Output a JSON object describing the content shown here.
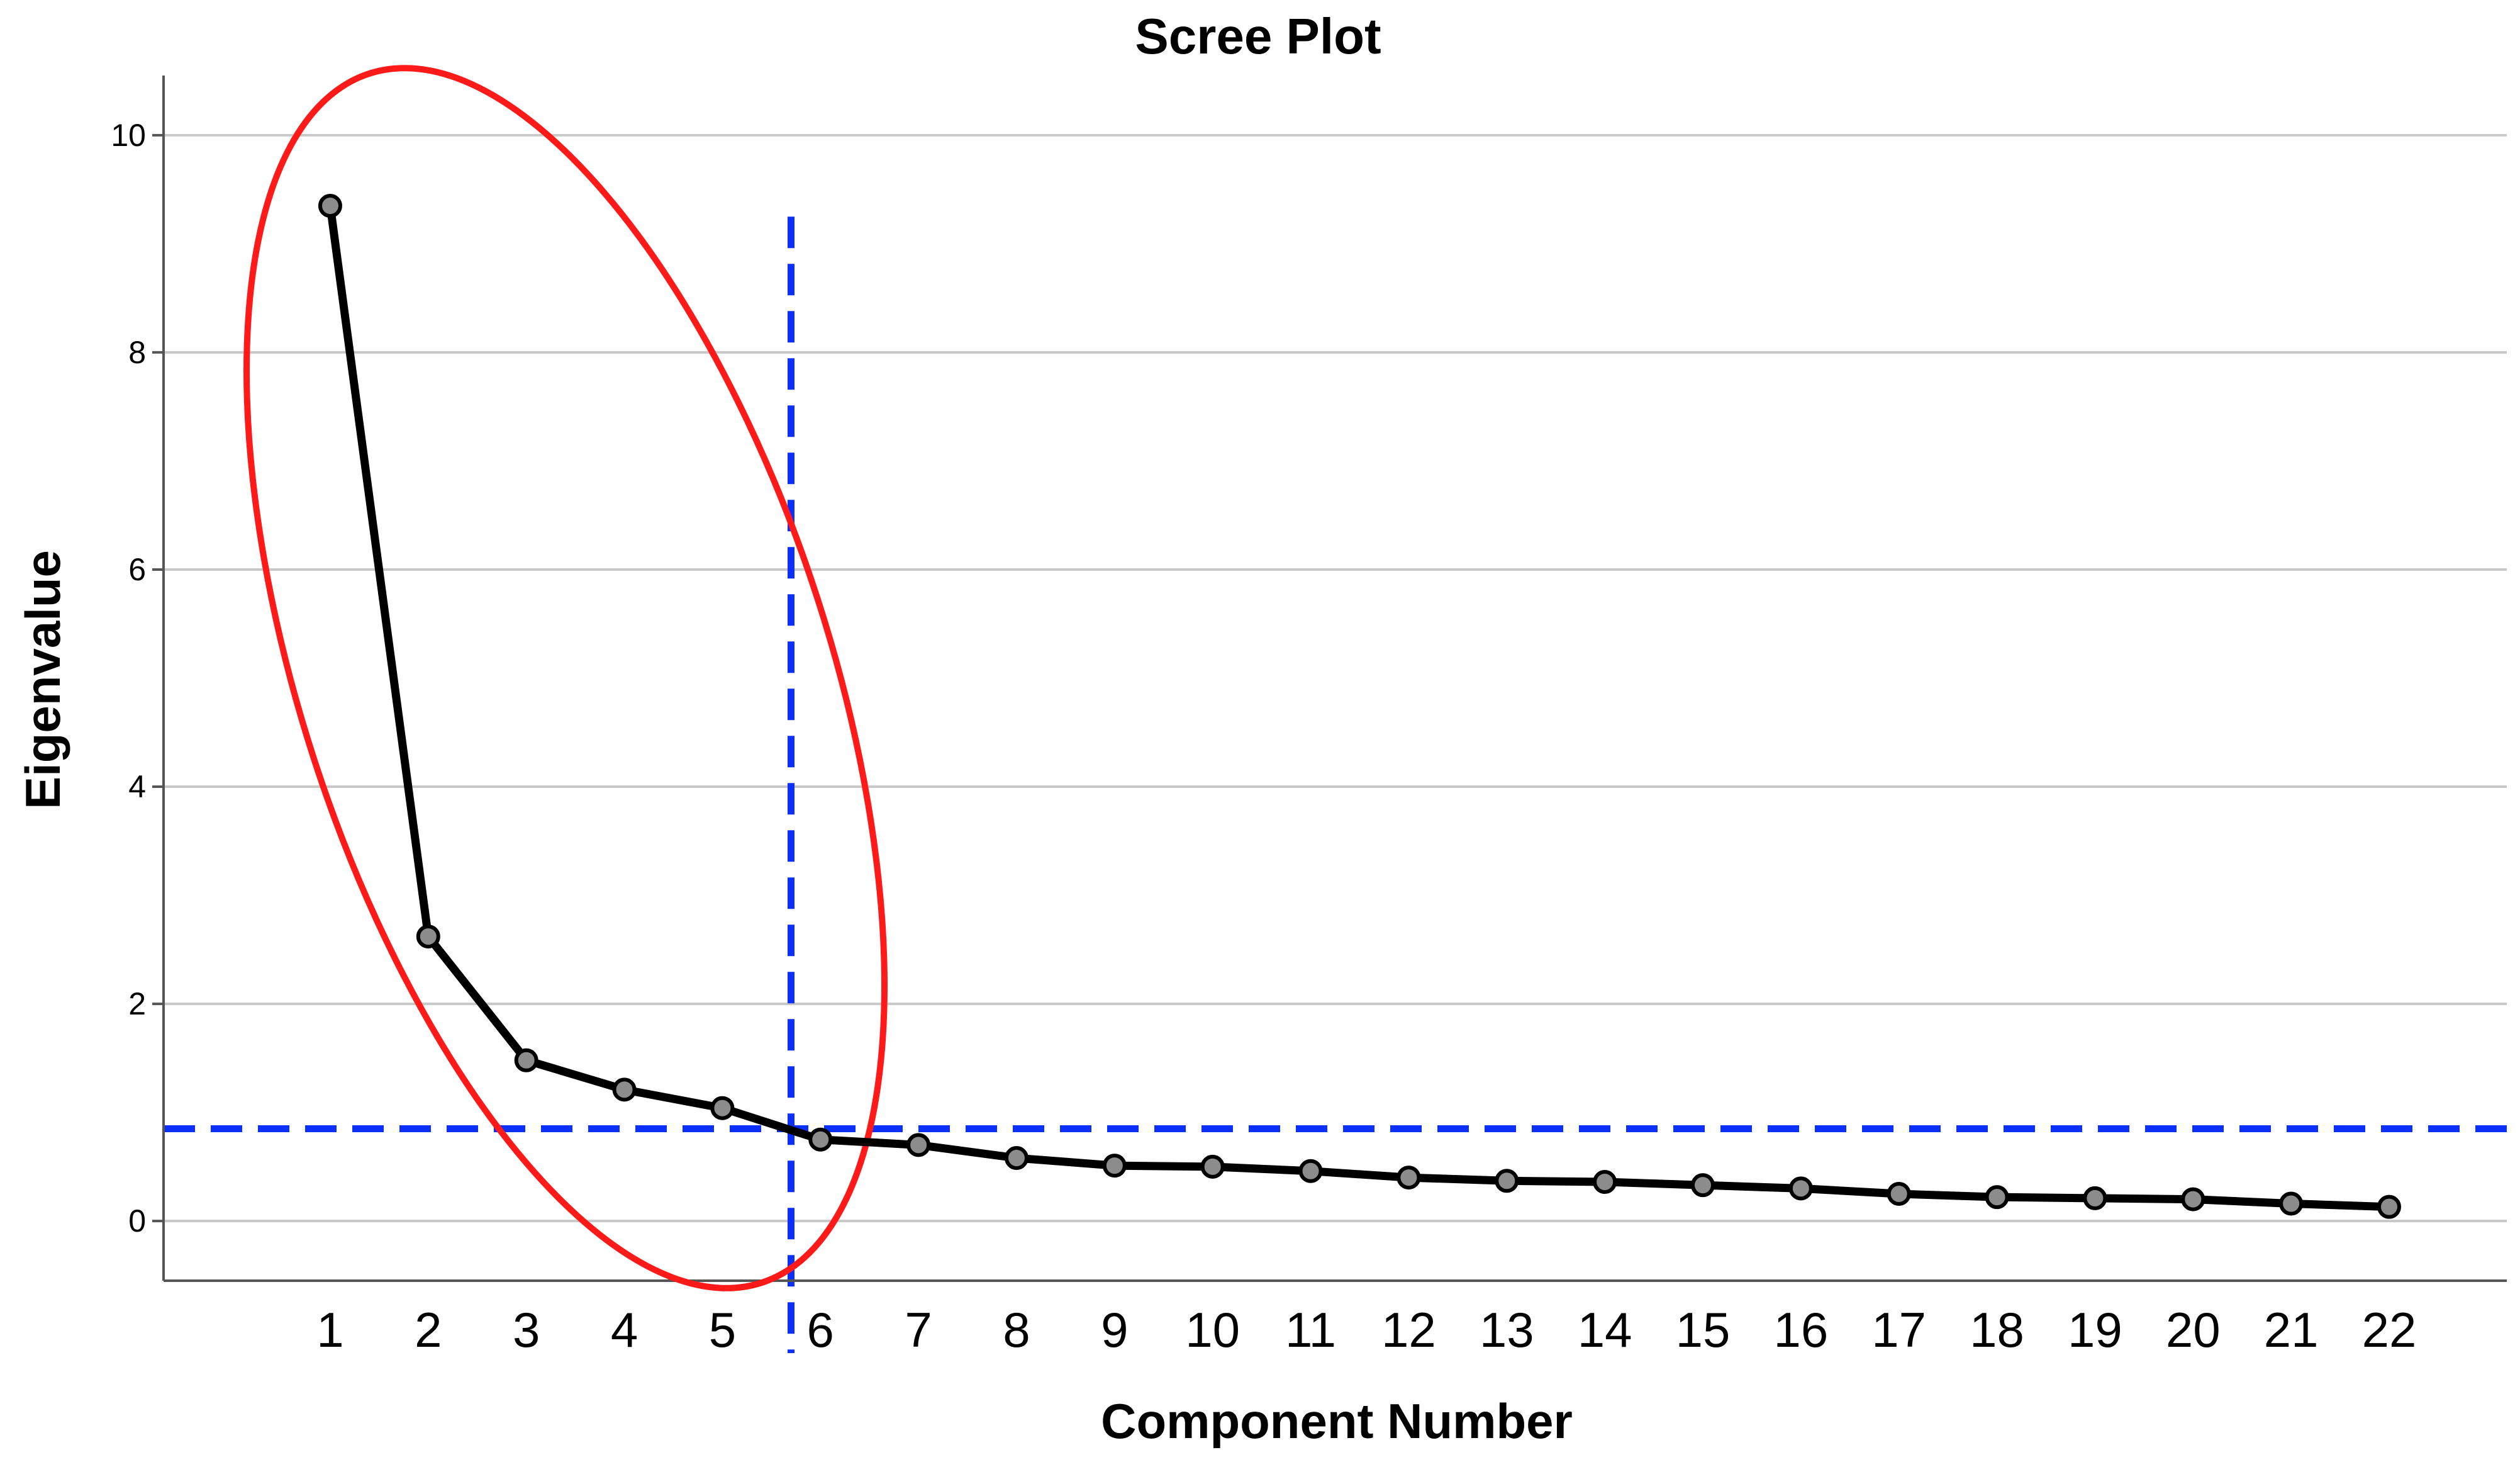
{
  "chart_data": {
    "type": "line",
    "title": "Scree Plot",
    "xlabel": "Component Number",
    "ylabel": "Eigenvalue",
    "x": [
      1,
      2,
      3,
      4,
      5,
      6,
      7,
      8,
      9,
      10,
      11,
      12,
      13,
      14,
      15,
      16,
      17,
      18,
      19,
      20,
      21,
      22
    ],
    "series": [
      {
        "values": [
          9.35,
          2.62,
          1.48,
          1.21,
          1.04,
          0.75,
          0.7,
          0.58,
          0.51,
          0.5,
          0.46,
          0.4,
          0.37,
          0.36,
          0.33,
          0.3,
          0.25,
          0.22,
          0.21,
          0.2,
          0.16,
          0.13
        ]
      }
    ],
    "xlim": [
      -0.7,
      23.2
    ],
    "ylim": [
      -0.55,
      10.55
    ],
    "yticks": [
      0,
      2,
      4,
      6,
      8,
      10
    ],
    "grid": true,
    "reference_lines": {
      "horizontal_y": 0.85,
      "vertical_x": 5.7,
      "color": "#0a2fff"
    },
    "annotation_ellipse": {
      "center_x": 3.4,
      "center_y": 5.0,
      "color": "#ff1a1a"
    },
    "line_color": "#000000",
    "marker_color": "#8c8c8c"
  }
}
